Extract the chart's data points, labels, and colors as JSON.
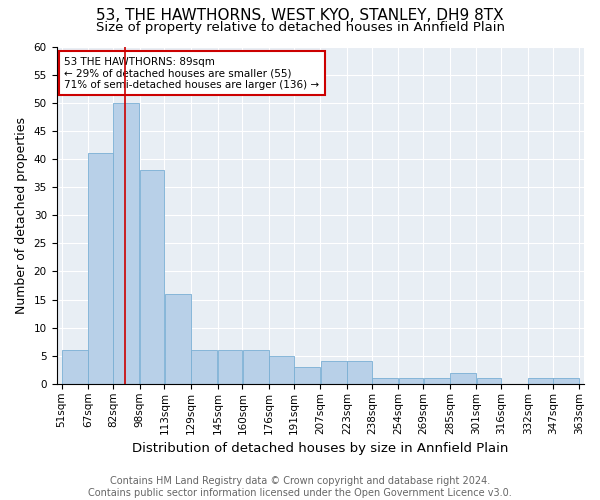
{
  "title": "53, THE HAWTHORNS, WEST KYO, STANLEY, DH9 8TX",
  "subtitle": "Size of property relative to detached houses in Annfield Plain",
  "xlabel": "Distribution of detached houses by size in Annfield Plain",
  "ylabel": "Number of detached properties",
  "bin_edges": [
    51,
    67,
    82,
    98,
    113,
    129,
    145,
    160,
    176,
    191,
    207,
    223,
    238,
    254,
    269,
    285,
    301,
    316,
    332,
    347,
    363
  ],
  "counts": [
    6,
    41,
    50,
    38,
    16,
    6,
    6,
    6,
    5,
    3,
    4,
    4,
    1,
    1,
    1,
    2,
    1,
    0,
    1,
    1
  ],
  "bar_color": "#b8d0e8",
  "bar_edge_color": "#7aafd4",
  "subject_size": 89,
  "red_line_color": "#cc0000",
  "annotation_text_line1": "53 THE HAWTHORNS: 89sqm",
  "annotation_text_line2": "← 29% of detached houses are smaller (55)",
  "annotation_text_line3": "71% of semi-detached houses are larger (136) →",
  "annotation_box_color": "#cc0000",
  "annotation_fill": "white",
  "ylim": [
    0,
    60
  ],
  "yticks": [
    0,
    5,
    10,
    15,
    20,
    25,
    30,
    35,
    40,
    45,
    50,
    55,
    60
  ],
  "background_color": "#e8eef4",
  "footer_line1": "Contains HM Land Registry data © Crown copyright and database right 2024.",
  "footer_line2": "Contains public sector information licensed under the Open Government Licence v3.0.",
  "title_fontsize": 11,
  "subtitle_fontsize": 9.5,
  "xlabel_fontsize": 9.5,
  "ylabel_fontsize": 9,
  "tick_fontsize": 7.5,
  "footer_fontsize": 7,
  "annotation_fontsize": 7.5
}
